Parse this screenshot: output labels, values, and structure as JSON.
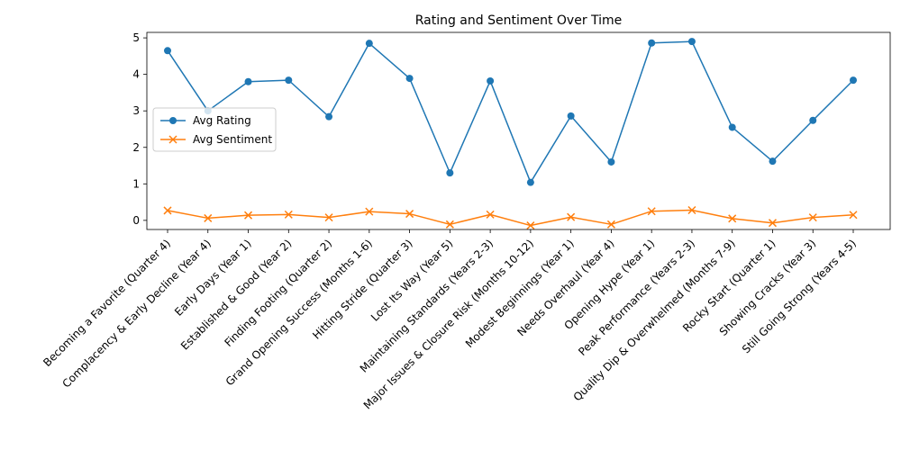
{
  "chart_data": {
    "type": "line",
    "title": "Rating and Sentiment Over Time",
    "xlabel": "",
    "ylabel": "",
    "categories": [
      "Becoming a Favorite (Quarter 4)",
      "Complacency & Early Decline (Year 4)",
      "Early Days (Year 1)",
      "Established & Good (Year 2)",
      "Finding Footing (Quarter 2)",
      "Grand Opening Success (Months 1-6)",
      "Hitting Stride (Quarter 3)",
      "Lost Its Way (Year 5)",
      "Maintaining Standards (Years 2-3)",
      "Major Issues & Closure Risk (Months 10-12)",
      "Modest Beginnings (Year 1)",
      "Needs Overhaul (Year 4)",
      "Opening Hype (Year 1)",
      "Peak Performance (Years 2-3)",
      "Quality Dip & Overwhelmed (Months 7-9)",
      "Rocky Start (Quarter 1)",
      "Showing Cracks (Year 3)",
      "Still Going Strong (Years 4-5)"
    ],
    "series": [
      {
        "name": "Avg Rating",
        "color": "#1f77b4",
        "marker": "circle",
        "values": [
          4.65,
          3.0,
          3.8,
          3.84,
          2.84,
          4.85,
          3.89,
          1.3,
          3.82,
          1.04,
          2.86,
          1.6,
          4.86,
          4.9,
          2.55,
          1.62,
          2.74,
          3.84
        ]
      },
      {
        "name": "Avg Sentiment",
        "color": "#ff7f0e",
        "marker": "x",
        "values": [
          0.27,
          0.06,
          0.14,
          0.16,
          0.08,
          0.24,
          0.18,
          -0.11,
          0.16,
          -0.14,
          0.09,
          -0.11,
          0.25,
          0.28,
          0.05,
          -0.07,
          0.08,
          0.15
        ]
      }
    ],
    "ylim": [
      -0.25,
      5.15
    ],
    "yticks": [
      0,
      1,
      2,
      3,
      4,
      5
    ],
    "grid": false,
    "legend_position": "center-left"
  }
}
